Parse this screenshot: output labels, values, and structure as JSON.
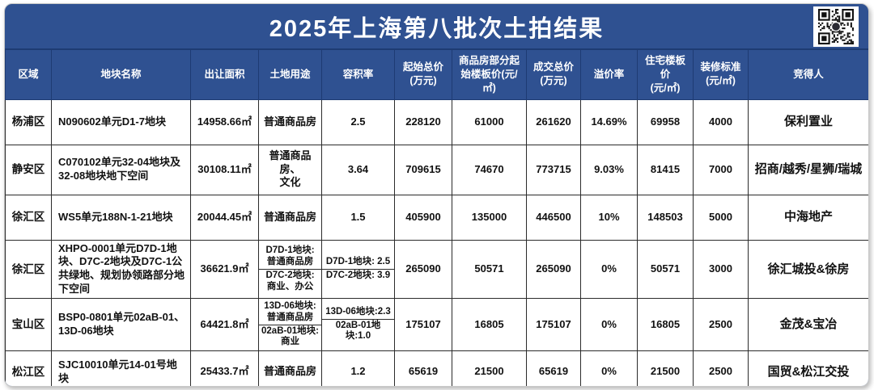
{
  "title": "2025年上海第八批次土拍结果",
  "colors": {
    "header_blue": "#2F5191",
    "header_line": "#1E3B73",
    "cell_border": "#2B2B2B",
    "title_text": "#FFFFFF"
  },
  "table": {
    "columns": [
      {
        "key": "region",
        "label": "区域"
      },
      {
        "key": "name",
        "label": "地块名称"
      },
      {
        "key": "area",
        "label": "出让面积"
      },
      {
        "key": "land_use",
        "label": "土地用途"
      },
      {
        "key": "plot_ratio",
        "label": "容积率"
      },
      {
        "key": "start_total",
        "label": "起始总价\n(万元)"
      },
      {
        "key": "start_floor",
        "label": "商品房部分起始楼板价(元/㎡)"
      },
      {
        "key": "deal_total",
        "label": "成交总价\n(万元)"
      },
      {
        "key": "premium",
        "label": "溢价率"
      },
      {
        "key": "res_floor",
        "label": "住宅楼板价\n(元/㎡)"
      },
      {
        "key": "deco",
        "label": "装修标准\n(元/㎡)"
      },
      {
        "key": "winner",
        "label": "竞得人"
      }
    ],
    "rows": [
      {
        "region": "杨浦区",
        "name": "N090602单元D1-7地块",
        "area": "14958.66㎡",
        "land_use": "普通商品房",
        "plot_ratio": "2.5",
        "start_total": "228120",
        "start_floor": "61000",
        "deal_total": "261620",
        "premium": "14.69%",
        "res_floor": "69958",
        "deco": "4000",
        "winner": "保利置业"
      },
      {
        "region": "静安区",
        "name": "C070102单元32-04地块及32-08地块地下空间",
        "area": "30108.11㎡",
        "land_use": "普通商品房、\n文化",
        "plot_ratio": "3.64",
        "start_total": "709615",
        "start_floor": "74670",
        "deal_total": "773715",
        "premium": "9.03%",
        "res_floor": "81415",
        "deco": "7000",
        "winner": "招商/越秀/星狮/瑞城"
      },
      {
        "region": "徐汇区",
        "name": "WS5单元188N-1-21地块",
        "area": "20044.45㎡",
        "land_use": "普通商品房",
        "plot_ratio": "1.5",
        "start_total": "405900",
        "start_floor": "135000",
        "deal_total": "446500",
        "premium": "10%",
        "res_floor": "148503",
        "deco": "5000",
        "winner": "中海地产"
      },
      {
        "region": "徐汇区",
        "name": "XHPO-0001单元D7D-1地块、D7C-2地块及D7C-1公共绿地、规划协领路部分地下空间",
        "area": "36621.9㎡",
        "land_use": [
          "D7D-1地块:\n普通商品房",
          "D7C-2地块:\n商业、办公"
        ],
        "plot_ratio": [
          "D7D-1地块: 2.5",
          "D7C-2地块: 3.9"
        ],
        "start_total": "265090",
        "start_floor": "50571",
        "deal_total": "265090",
        "premium": "0%",
        "res_floor": "50571",
        "deco": "3000",
        "winner": "徐汇城投&徐房"
      },
      {
        "region": "宝山区",
        "name": "BSP0-0801单元02aB-01、13D-06地块",
        "area": "64421.8㎡",
        "land_use": [
          "13D-06地块:\n普通商品房",
          "02aB-01地块:\n商业"
        ],
        "plot_ratio": [
          "13D-06地块:2.3",
          "02aB-01地块:1.0"
        ],
        "start_total": "175107",
        "start_floor": "16805",
        "deal_total": "175107",
        "premium": "0%",
        "res_floor": "16805",
        "deco": "2500",
        "winner": "金茂&宝冶"
      },
      {
        "region": "松江区",
        "name": "SJC10010单元14-01号地块",
        "area": "25433.7㎡",
        "land_use": "普通商品房",
        "plot_ratio": "1.2",
        "start_total": "65619",
        "start_floor": "21500",
        "deal_total": "65619",
        "premium": "0%",
        "res_floor": "21500",
        "deco": "2500",
        "winner": "国贸&松江交投"
      }
    ]
  }
}
